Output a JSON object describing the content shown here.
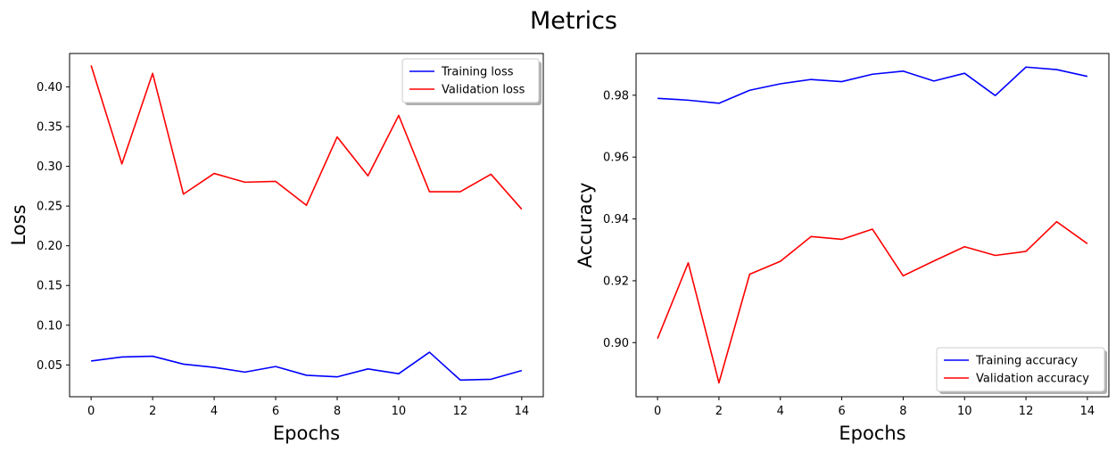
{
  "figure": {
    "title": "Metrics"
  },
  "chart_data": [
    {
      "type": "line",
      "xlabel": "Epochs",
      "ylabel": "Loss",
      "xlim": [
        -0.7,
        14.7
      ],
      "ylim": [
        0.01,
        0.442
      ],
      "xticks": [
        0,
        2,
        4,
        6,
        8,
        10,
        12,
        14
      ],
      "yticks": [
        0.05,
        0.1,
        0.15,
        0.2,
        0.25,
        0.3,
        0.35,
        0.4
      ],
      "ytick_decimals": 2,
      "grid": false,
      "legend_position": "top-right",
      "x": [
        0,
        1,
        2,
        3,
        4,
        5,
        6,
        7,
        8,
        9,
        10,
        11,
        12,
        13,
        14
      ],
      "series": [
        {
          "name": "Training loss",
          "color": "#0000ff",
          "values": [
            0.055,
            0.06,
            0.061,
            0.051,
            0.047,
            0.041,
            0.048,
            0.037,
            0.035,
            0.045,
            0.039,
            0.066,
            0.031,
            0.032,
            0.043
          ]
        },
        {
          "name": "Validation loss",
          "color": "#ff0000",
          "values": [
            0.427,
            0.303,
            0.417,
            0.265,
            0.291,
            0.28,
            0.281,
            0.251,
            0.337,
            0.288,
            0.364,
            0.268,
            0.268,
            0.29,
            0.246
          ]
        }
      ]
    },
    {
      "type": "line",
      "xlabel": "Epochs",
      "ylabel": "Accuracy",
      "xlim": [
        -0.7,
        14.7
      ],
      "ylim": [
        0.8825,
        0.9935
      ],
      "xticks": [
        0,
        2,
        4,
        6,
        8,
        10,
        12,
        14
      ],
      "yticks": [
        0.9,
        0.92,
        0.94,
        0.96,
        0.98
      ],
      "ytick_decimals": 2,
      "grid": false,
      "legend_position": "bottom-right",
      "x": [
        0,
        1,
        2,
        3,
        4,
        5,
        6,
        7,
        8,
        9,
        10,
        11,
        12,
        13,
        14
      ],
      "series": [
        {
          "name": "Training accuracy",
          "color": "#0000ff",
          "values": [
            0.979,
            0.9784,
            0.9774,
            0.9816,
            0.9837,
            0.9851,
            0.9844,
            0.9868,
            0.9878,
            0.9846,
            0.9871,
            0.9799,
            0.9891,
            0.9883,
            0.9861
          ]
        },
        {
          "name": "Validation accuracy",
          "color": "#ff0000",
          "values": [
            0.9013,
            0.9258,
            0.887,
            0.9221,
            0.9263,
            0.9343,
            0.9334,
            0.9367,
            0.9216,
            0.9264,
            0.931,
            0.9282,
            0.9295,
            0.9391,
            0.932
          ]
        }
      ]
    }
  ]
}
